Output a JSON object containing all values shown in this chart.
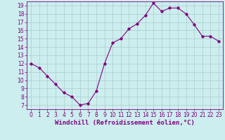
{
  "x": [
    0,
    1,
    2,
    3,
    4,
    5,
    6,
    7,
    8,
    9,
    10,
    11,
    12,
    13,
    14,
    15,
    16,
    17,
    18,
    19,
    20,
    21,
    22,
    23
  ],
  "y": [
    12,
    11.5,
    10.5,
    9.5,
    8.5,
    8.0,
    7.0,
    7.2,
    8.7,
    12.0,
    14.5,
    15.0,
    16.2,
    16.8,
    17.8,
    19.3,
    18.3,
    18.7,
    18.7,
    18.0,
    16.7,
    15.3,
    15.3,
    14.7
  ],
  "color": "#800080",
  "bg_color": "#cceeee",
  "grid_color": "#aacccc",
  "xlabel": "Windchill (Refroidissement éolien,°C)",
  "xlim": [
    -0.5,
    23.5
  ],
  "ylim": [
    6.5,
    19.5
  ],
  "yticks": [
    7,
    8,
    9,
    10,
    11,
    12,
    13,
    14,
    15,
    16,
    17,
    18,
    19
  ],
  "xticks": [
    0,
    1,
    2,
    3,
    4,
    5,
    6,
    7,
    8,
    9,
    10,
    11,
    12,
    13,
    14,
    15,
    16,
    17,
    18,
    19,
    20,
    21,
    22,
    23
  ],
  "tick_fontsize": 5.5,
  "xlabel_fontsize": 6.5,
  "marker": "D",
  "marker_size": 1.8,
  "line_width": 0.8
}
